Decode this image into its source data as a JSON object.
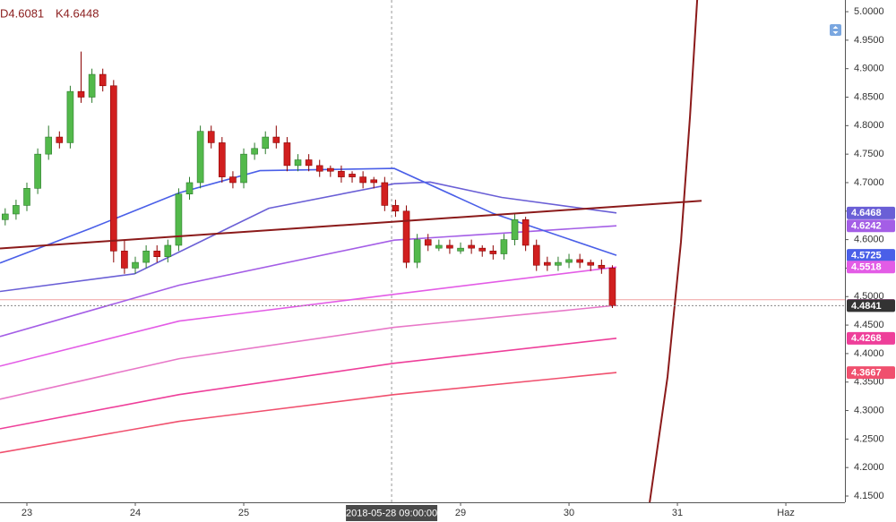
{
  "chart_data": {
    "type": "candlestick",
    "annotations": [
      "D4.6081",
      "K4.6448"
    ],
    "crosshair_label": "2018-05-28 09:00:00",
    "crosshair_x": 3.364,
    "up_color": "#53b94b",
    "down_color": "#d11f1f",
    "x": [
      -0.2,
      -0.1,
      0,
      0.1,
      0.2,
      0.3,
      0.4,
      0.5,
      0.6,
      0.7,
      0.8,
      0.9,
      1,
      1.1,
      1.2,
      1.3,
      1.4,
      1.5,
      1.6,
      1.7,
      1.8,
      1.9,
      2,
      2.1,
      2.2,
      2.3,
      2.4,
      2.5,
      2.6,
      2.7,
      2.8,
      2.9,
      3,
      3.1,
      3.2,
      3.3,
      3.4,
      3.5,
      3.6,
      3.7,
      3.8,
      3.9,
      4,
      4.1,
      4.2,
      4.3,
      4.4,
      4.5,
      4.6,
      4.7,
      4.8,
      4.9,
      5,
      5.1,
      5.2,
      5.3,
      5.4
    ],
    "open": [
      4.635,
      4.645,
      4.66,
      4.69,
      4.75,
      4.78,
      4.77,
      4.86,
      4.85,
      4.89,
      4.87,
      4.58,
      4.55,
      4.56,
      4.58,
      4.57,
      4.59,
      4.68,
      4.7,
      4.79,
      4.77,
      4.71,
      4.7,
      4.75,
      4.76,
      4.78,
      4.77,
      4.73,
      4.74,
      4.73,
      4.725,
      4.72,
      4.715,
      4.71,
      4.705,
      4.7,
      4.66,
      4.65,
      4.56,
      4.6,
      4.585,
      4.59,
      4.58,
      4.59,
      4.585,
      4.58,
      4.575,
      4.6,
      4.635,
      4.59,
      4.56,
      4.555,
      4.56,
      4.565,
      4.56,
      4.555,
      4.55
    ],
    "high": [
      4.655,
      4.67,
      4.7,
      4.76,
      4.8,
      4.79,
      4.87,
      4.93,
      4.9,
      4.9,
      4.88,
      4.6,
      4.57,
      4.59,
      4.59,
      4.6,
      4.69,
      4.71,
      4.8,
      4.8,
      4.78,
      4.72,
      4.76,
      4.77,
      4.79,
      4.8,
      4.78,
      4.75,
      4.75,
      4.74,
      4.73,
      4.73,
      4.72,
      4.72,
      4.71,
      4.71,
      4.67,
      4.66,
      4.61,
      4.61,
      4.6,
      4.6,
      4.595,
      4.6,
      4.59,
      4.59,
      4.61,
      4.645,
      4.64,
      4.6,
      4.57,
      4.57,
      4.575,
      4.575,
      4.565,
      4.565,
      4.555
    ],
    "low": [
      4.625,
      4.635,
      4.65,
      4.68,
      4.74,
      4.76,
      4.76,
      4.84,
      4.84,
      4.86,
      4.56,
      4.54,
      4.54,
      4.55,
      4.56,
      4.56,
      4.58,
      4.67,
      4.69,
      4.76,
      4.7,
      4.69,
      4.69,
      4.74,
      4.75,
      4.76,
      4.72,
      4.72,
      4.72,
      4.71,
      4.71,
      4.7,
      4.7,
      4.69,
      4.69,
      4.65,
      4.64,
      4.55,
      4.55,
      4.58,
      4.58,
      4.575,
      4.575,
      4.575,
      4.57,
      4.565,
      4.565,
      4.59,
      4.58,
      4.545,
      4.545,
      4.545,
      4.55,
      4.55,
      4.545,
      4.54,
      4.48
    ],
    "close": [
      4.645,
      4.66,
      4.69,
      4.75,
      4.78,
      4.77,
      4.86,
      4.85,
      4.89,
      4.87,
      4.58,
      4.55,
      4.56,
      4.58,
      4.57,
      4.59,
      4.68,
      4.7,
      4.79,
      4.77,
      4.71,
      4.7,
      4.75,
      4.76,
      4.78,
      4.77,
      4.73,
      4.74,
      4.73,
      4.72,
      4.72,
      4.71,
      4.71,
      4.7,
      4.7,
      4.66,
      4.65,
      4.56,
      4.6,
      4.59,
      4.59,
      4.585,
      4.585,
      4.585,
      4.58,
      4.575,
      4.6,
      4.635,
      4.59,
      4.555,
      4.555,
      4.56,
      4.565,
      4.56,
      4.555,
      4.55,
      4.4841
    ],
    "last_price_color": "#333333",
    "overlays": [
      {
        "color": "#6a5fd6",
        "x": [
          -0.248,
          0.992,
          2.231,
          3.388,
          3.719,
          4.38,
          5.438
        ],
        "values": [
          4.509,
          4.54,
          4.655,
          4.698,
          4.701,
          4.674,
          4.6468
        ]
      },
      {
        "color": "#a45ee6",
        "x": [
          -0.248,
          1.405,
          3.388,
          5.438
        ],
        "values": [
          4.43,
          4.52,
          4.599,
          4.6242
        ]
      },
      {
        "color": "#4a5fe8",
        "x": [
          -0.248,
          0.579,
          1.405,
          2.149,
          3.388,
          4.298,
          5.438
        ],
        "values": [
          4.559,
          4.619,
          4.682,
          4.721,
          4.725,
          4.646,
          4.5725
        ]
      },
      {
        "color": "#e35ce6",
        "x": [
          -0.248,
          1.405,
          3.388,
          5.438
        ],
        "values": [
          4.378,
          4.457,
          4.504,
          4.5518
        ]
      },
      {
        "color": "#e878c8",
        "x": [
          -0.248,
          1.405,
          3.388,
          5.438
        ],
        "values": [
          4.32,
          4.391,
          4.446,
          4.4847
        ]
      },
      {
        "color": "#ee3f9a",
        "x": [
          -0.248,
          1.405,
          3.388,
          5.438
        ],
        "values": [
          4.268,
          4.328,
          4.383,
          4.4268
        ]
      },
      {
        "color": "#f0506e",
        "x": [
          -0.248,
          1.405,
          3.388,
          5.438
        ],
        "values": [
          4.226,
          4.281,
          4.328,
          4.3667
        ]
      }
    ],
    "drawings": [
      {
        "color": "#8b1a1a",
        "x": [
          -0.248,
          6.223
        ],
        "values": [
          4.5844,
          4.668
        ]
      },
      {
        "color": "#8b1a1a",
        "x": [
          5.744,
          5.909,
          6.033,
          6.116,
          6.182
        ],
        "values": [
          4.139,
          4.359,
          4.596,
          4.816,
          5.0205
        ]
      }
    ],
    "alert_line": {
      "value": 4.4945,
      "color": "#f0a0a0"
    },
    "xlim": [
      -0.248,
      7.545
    ],
    "xticks": [
      {
        "value": 0,
        "label": "23"
      },
      {
        "value": 1,
        "label": "24"
      },
      {
        "value": 2,
        "label": "25"
      },
      {
        "value": 4,
        "label": "29"
      },
      {
        "value": 5,
        "label": "30"
      },
      {
        "value": 6,
        "label": "31"
      },
      {
        "value": 7,
        "label": "Haz"
      }
    ],
    "ylim": [
      4.139,
      5.0205
    ],
    "yticks": [
      {
        "value": 4.15,
        "label": "4.1500"
      },
      {
        "value": 4.2,
        "label": "4.2000"
      },
      {
        "value": 4.25,
        "label": "4.2500"
      },
      {
        "value": 4.3,
        "label": "4.3000"
      },
      {
        "value": 4.35,
        "label": "4.3500"
      },
      {
        "value": 4.4,
        "label": "4.4000"
      },
      {
        "value": 4.45,
        "label": "4.4500"
      },
      {
        "value": 4.5,
        "label": "4.5000"
      },
      {
        "value": 4.55,
        "label": "4.5500"
      },
      {
        "value": 4.6,
        "label": "4.6000"
      },
      {
        "value": 4.65,
        "label": "4.6500"
      },
      {
        "value": 4.7,
        "label": "4.7000"
      },
      {
        "value": 4.75,
        "label": "4.7500"
      },
      {
        "value": 4.8,
        "label": "4.8000"
      },
      {
        "value": 4.85,
        "label": "4.8500"
      },
      {
        "value": 4.9,
        "label": "4.9000"
      },
      {
        "value": 4.95,
        "label": "4.9500"
      },
      {
        "value": 5.0,
        "label": "5.0000"
      }
    ],
    "grid": false
  }
}
